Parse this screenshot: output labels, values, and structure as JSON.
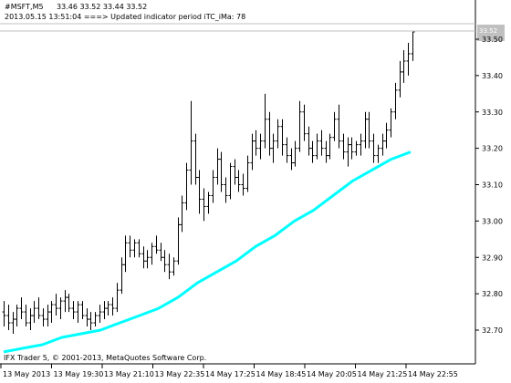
{
  "header": {
    "symbol": "#MSFT,M5",
    "ohlc": "33.46 33.52 33.44 33.52",
    "log_message": "2013.05.15 13:51:04 ===>  Updated indicator period iTC_iMa: 78"
  },
  "footer": {
    "copyright": "IFX Trader 5, © 2001-2013, MetaQuotes Software Corp."
  },
  "price_badge": {
    "value": "33.52"
  },
  "colors": {
    "background": "#ffffff",
    "bars": "#000000",
    "ma_line": "#00ffff",
    "grid_lines": "#c0c0c0",
    "price_badge_bg": "#c0c0c0",
    "price_badge_text": "#ffffff"
  },
  "chart_data": {
    "type": "ohlc",
    "timeframe": "M5",
    "y_ticks": [
      "33.50",
      "33.40",
      "33.30",
      "33.20",
      "33.10",
      "33.00",
      "32.90",
      "32.80",
      "32.70"
    ],
    "y_tick_values": [
      33.5,
      33.4,
      33.3,
      33.2,
      33.1,
      33.0,
      32.9,
      32.8,
      32.7
    ],
    "x_ticks": [
      "13 May 2013",
      "13 May 19:30",
      "13 May 21:10",
      "13 May 22:35",
      "14 May 17:25",
      "14 May 18:45",
      "14 May 20:05",
      "14 May 21:25",
      "14 May 22:55"
    ],
    "ylim": [
      32.64,
      33.56
    ],
    "ohlc": [
      [
        32.75,
        32.78,
        32.71,
        32.74
      ],
      [
        32.74,
        32.77,
        32.7,
        32.72
      ],
      [
        32.72,
        32.75,
        32.69,
        32.73
      ],
      [
        32.73,
        32.77,
        32.71,
        32.76
      ],
      [
        32.76,
        32.79,
        32.73,
        32.75
      ],
      [
        32.75,
        32.77,
        32.71,
        32.72
      ],
      [
        32.72,
        32.76,
        32.7,
        32.74
      ],
      [
        32.74,
        32.78,
        32.72,
        32.76
      ],
      [
        32.76,
        32.79,
        32.73,
        32.74
      ],
      [
        32.74,
        32.76,
        32.71,
        32.73
      ],
      [
        32.73,
        32.77,
        32.71,
        32.75
      ],
      [
        32.75,
        32.78,
        32.72,
        32.77
      ],
      [
        32.77,
        32.8,
        32.74,
        32.76
      ],
      [
        32.76,
        32.79,
        32.73,
        32.78
      ],
      [
        32.78,
        32.81,
        32.75,
        32.79
      ],
      [
        32.79,
        32.8,
        32.75,
        32.76
      ],
      [
        32.76,
        32.78,
        32.73,
        32.75
      ],
      [
        32.75,
        32.78,
        32.72,
        32.77
      ],
      [
        32.77,
        32.78,
        32.73,
        32.74
      ],
      [
        32.74,
        32.76,
        32.71,
        32.73
      ],
      [
        32.73,
        32.75,
        32.7,
        32.72
      ],
      [
        32.72,
        32.75,
        32.71,
        32.74
      ],
      [
        32.74,
        32.77,
        32.72,
        32.75
      ],
      [
        32.75,
        32.78,
        32.73,
        32.76
      ],
      [
        32.76,
        32.78,
        32.74,
        32.77
      ],
      [
        32.77,
        32.79,
        32.74,
        32.76
      ],
      [
        32.76,
        32.83,
        32.75,
        32.81
      ],
      [
        32.81,
        32.9,
        32.8,
        32.88
      ],
      [
        32.88,
        32.96,
        32.86,
        32.94
      ],
      [
        32.94,
        32.96,
        32.9,
        32.92
      ],
      [
        32.92,
        32.95,
        32.9,
        32.94
      ],
      [
        32.94,
        32.95,
        32.9,
        32.91
      ],
      [
        32.91,
        32.93,
        32.87,
        32.89
      ],
      [
        32.89,
        32.92,
        32.87,
        32.9
      ],
      [
        32.9,
        32.94,
        32.88,
        32.93
      ],
      [
        32.93,
        32.96,
        32.91,
        32.92
      ],
      [
        32.92,
        32.94,
        32.89,
        32.9
      ],
      [
        32.9,
        32.92,
        32.86,
        32.88
      ],
      [
        32.88,
        32.91,
        32.84,
        32.86
      ],
      [
        32.86,
        32.9,
        32.85,
        32.89
      ],
      [
        32.89,
        33.01,
        32.88,
        32.99
      ],
      [
        32.99,
        33.07,
        32.97,
        33.05
      ],
      [
        33.05,
        33.16,
        33.03,
        33.14
      ],
      [
        33.14,
        33.33,
        33.1,
        33.22
      ],
      [
        33.22,
        33.24,
        33.1,
        33.12
      ],
      [
        33.12,
        33.14,
        33.02,
        33.06
      ],
      [
        33.06,
        33.09,
        33.0,
        33.04
      ],
      [
        33.04,
        33.08,
        33.02,
        33.07
      ],
      [
        33.07,
        33.14,
        33.05,
        33.12
      ],
      [
        33.12,
        33.2,
        33.1,
        33.17
      ],
      [
        33.17,
        33.19,
        33.08,
        33.1
      ],
      [
        33.1,
        33.12,
        33.05,
        33.07
      ],
      [
        33.07,
        33.16,
        33.06,
        33.15
      ],
      [
        33.15,
        33.17,
        33.1,
        33.12
      ],
      [
        33.12,
        33.14,
        33.08,
        33.1
      ],
      [
        33.1,
        33.13,
        33.07,
        33.09
      ],
      [
        33.09,
        33.18,
        33.08,
        33.16
      ],
      [
        33.16,
        33.24,
        33.14,
        33.22
      ],
      [
        33.22,
        33.25,
        33.18,
        33.2
      ],
      [
        33.2,
        33.24,
        33.17,
        33.22
      ],
      [
        33.22,
        33.35,
        33.2,
        33.28
      ],
      [
        33.28,
        33.3,
        33.18,
        33.2
      ],
      [
        33.2,
        33.24,
        33.16,
        33.22
      ],
      [
        33.22,
        33.28,
        33.2,
        33.26
      ],
      [
        33.26,
        33.28,
        33.18,
        33.21
      ],
      [
        33.21,
        33.23,
        33.16,
        33.18
      ],
      [
        33.18,
        33.2,
        33.14,
        33.16
      ],
      [
        33.16,
        33.22,
        33.15,
        33.2
      ],
      [
        33.2,
        33.33,
        33.19,
        33.3
      ],
      [
        33.3,
        33.32,
        33.22,
        33.24
      ],
      [
        33.24,
        33.26,
        33.18,
        33.2
      ],
      [
        33.2,
        33.22,
        33.16,
        33.18
      ],
      [
        33.18,
        33.24,
        33.17,
        33.22
      ],
      [
        33.22,
        33.25,
        33.18,
        33.2
      ],
      [
        33.2,
        33.22,
        33.16,
        33.18
      ],
      [
        33.18,
        33.24,
        33.17,
        33.23
      ],
      [
        33.23,
        33.3,
        33.22,
        33.28
      ],
      [
        33.28,
        33.32,
        33.2,
        33.22
      ],
      [
        33.22,
        33.24,
        33.17,
        33.19
      ],
      [
        33.19,
        33.23,
        33.15,
        33.21
      ],
      [
        33.21,
        33.23,
        33.17,
        33.19
      ],
      [
        33.19,
        33.22,
        33.18,
        33.21
      ],
      [
        33.21,
        33.24,
        33.18,
        33.22
      ],
      [
        33.22,
        33.3,
        33.2,
        33.28
      ],
      [
        33.28,
        33.3,
        33.2,
        33.22
      ],
      [
        33.22,
        33.24,
        33.16,
        33.18
      ],
      [
        33.18,
        33.21,
        33.16,
        33.2
      ],
      [
        33.2,
        33.24,
        33.18,
        33.22
      ],
      [
        33.22,
        33.27,
        33.2,
        33.25
      ],
      [
        33.25,
        33.31,
        33.23,
        33.3
      ],
      [
        33.3,
        33.38,
        33.28,
        33.36
      ],
      [
        33.36,
        33.44,
        33.34,
        33.41
      ],
      [
        33.41,
        33.47,
        33.38,
        33.44
      ],
      [
        33.44,
        33.49,
        33.4,
        33.46
      ],
      [
        33.46,
        33.52,
        33.44,
        33.52
      ]
    ],
    "ma_series": {
      "color": "#00ffff",
      "values": [
        32.64,
        32.65,
        32.66,
        32.68,
        32.69,
        32.7,
        32.72,
        32.74,
        32.76,
        32.79,
        32.83,
        32.86,
        32.89,
        32.93,
        32.96,
        33.0,
        33.03,
        33.07,
        33.11,
        33.14,
        33.17,
        33.19
      ]
    }
  }
}
